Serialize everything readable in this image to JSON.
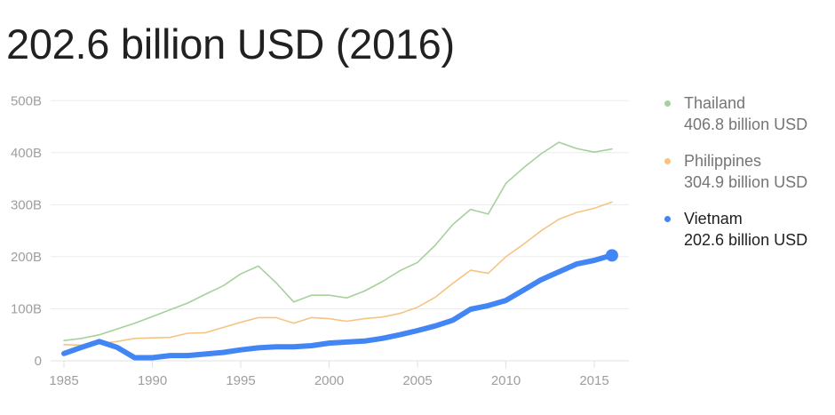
{
  "header": {
    "title": "202.6 billion USD (2016)"
  },
  "legend": {
    "items": [
      {
        "name": "Thailand",
        "value": "406.8 billion USD",
        "color": "#a5d29a",
        "state": "muted"
      },
      {
        "name": "Philippines",
        "value": "304.9 billion USD",
        "color": "#f6c482",
        "state": "muted"
      },
      {
        "name": "Vietnam",
        "value": "202.6 billion USD",
        "color": "#4285f4",
        "state": "active"
      }
    ]
  },
  "chart_data": {
    "type": "line",
    "title": "202.6 billion USD (2016)",
    "xlabel": "",
    "ylabel": "",
    "x": [
      1985,
      1986,
      1987,
      1988,
      1989,
      1990,
      1991,
      1992,
      1993,
      1994,
      1995,
      1996,
      1997,
      1998,
      1999,
      2000,
      2001,
      2002,
      2003,
      2004,
      2005,
      2006,
      2007,
      2008,
      2009,
      2010,
      2011,
      2012,
      2013,
      2014,
      2015,
      2016
    ],
    "x_ticks": [
      "1985",
      "1990",
      "1995",
      "2000",
      "2005",
      "2010",
      "2015"
    ],
    "y_ticks": [
      "0",
      "100B",
      "200B",
      "300B",
      "400B",
      "500B"
    ],
    "ylim": [
      0,
      500
    ],
    "y_unit": "billion USD",
    "grid": true,
    "legend_position": "right",
    "series": [
      {
        "name": "Thailand",
        "color": "#a5d29a",
        "values": [
          39,
          43,
          50,
          61,
          72,
          85,
          98,
          111,
          128,
          144,
          167,
          182,
          150,
          113,
          126,
          126,
          121,
          134,
          152,
          173,
          189,
          222,
          262,
          291,
          282,
          341,
          371,
          398,
          420,
          408,
          401,
          407
        ]
      },
      {
        "name": "Philippines",
        "color": "#f6c482",
        "values": [
          31,
          30,
          33,
          37,
          43,
          44,
          45,
          53,
          54,
          64,
          74,
          83,
          83,
          72,
          83,
          81,
          76,
          81,
          84,
          91,
          103,
          122,
          149,
          174,
          168,
          200,
          224,
          250,
          272,
          285,
          293,
          305
        ]
      },
      {
        "name": "Vietnam",
        "color": "#4285f4",
        "values": [
          14,
          26,
          37,
          26,
          6,
          6,
          10,
          10,
          13,
          16,
          21,
          25,
          27,
          27,
          29,
          34,
          36,
          38,
          43,
          50,
          58,
          67,
          78,
          99,
          106,
          116,
          136,
          156,
          171,
          186,
          193,
          203
        ]
      }
    ],
    "highlight": {
      "series": "Vietnam",
      "x": 2016,
      "y": 202.6,
      "label": "202.6 billion USD (2016)"
    }
  }
}
